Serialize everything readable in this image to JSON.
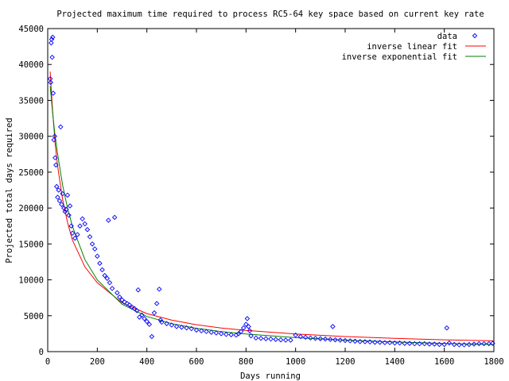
{
  "chart_data": {
    "type": "scatter",
    "title": "Projected maximum time required to process RC5-64 key space based on current key rate",
    "xlabel": "Days running",
    "ylabel": "Projected total days required",
    "xlim": [
      0,
      1800
    ],
    "ylim": [
      0,
      45000
    ],
    "x_ticks": [
      0,
      200,
      400,
      600,
      800,
      1000,
      1200,
      1400,
      1600,
      1800
    ],
    "y_ticks": [
      0,
      5000,
      10000,
      15000,
      20000,
      25000,
      30000,
      35000,
      40000,
      45000
    ],
    "grid": false,
    "legend_position": "top-right",
    "series": [
      {
        "name": "data",
        "kind": "points",
        "color": "#0000ff",
        "points": [
          [
            10,
            38000
          ],
          [
            12,
            37500
          ],
          [
            14,
            43000
          ],
          [
            16,
            43500
          ],
          [
            18,
            41000
          ],
          [
            20,
            43800
          ],
          [
            22,
            36000
          ],
          [
            25,
            29500
          ],
          [
            28,
            30000
          ],
          [
            30,
            27000
          ],
          [
            33,
            26000
          ],
          [
            36,
            23000
          ],
          [
            40,
            21500
          ],
          [
            44,
            22500
          ],
          [
            48,
            21000
          ],
          [
            52,
            31300
          ],
          [
            56,
            20500
          ],
          [
            60,
            22000
          ],
          [
            65,
            20000
          ],
          [
            70,
            19500
          ],
          [
            75,
            19800
          ],
          [
            80,
            21800
          ],
          [
            85,
            19000
          ],
          [
            90,
            20300
          ],
          [
            95,
            17500
          ],
          [
            100,
            16500
          ],
          [
            110,
            15800
          ],
          [
            120,
            16300
          ],
          [
            130,
            17500
          ],
          [
            140,
            18500
          ],
          [
            150,
            17800
          ],
          [
            160,
            17000
          ],
          [
            170,
            16000
          ],
          [
            180,
            15000
          ],
          [
            190,
            14300
          ],
          [
            200,
            13300
          ],
          [
            210,
            12300
          ],
          [
            220,
            11400
          ],
          [
            230,
            10600
          ],
          [
            240,
            10200
          ],
          [
            245,
            18300
          ],
          [
            250,
            9600
          ],
          [
            260,
            8800
          ],
          [
            270,
            18700
          ],
          [
            280,
            8200
          ],
          [
            290,
            7600
          ],
          [
            300,
            7200
          ],
          [
            310,
            6900
          ],
          [
            320,
            6700
          ],
          [
            330,
            6500
          ],
          [
            340,
            6200
          ],
          [
            350,
            6000
          ],
          [
            360,
            5700
          ],
          [
            365,
            8600
          ],
          [
            370,
            4800
          ],
          [
            380,
            5100
          ],
          [
            390,
            4600
          ],
          [
            400,
            4200
          ],
          [
            410,
            3800
          ],
          [
            420,
            2100
          ],
          [
            430,
            5400
          ],
          [
            440,
            6700
          ],
          [
            450,
            8700
          ],
          [
            455,
            4400
          ],
          [
            460,
            4100
          ],
          [
            480,
            3900
          ],
          [
            500,
            3700
          ],
          [
            520,
            3500
          ],
          [
            540,
            3400
          ],
          [
            560,
            3300
          ],
          [
            580,
            3200
          ],
          [
            600,
            3000
          ],
          [
            620,
            2900
          ],
          [
            640,
            2800
          ],
          [
            660,
            2700
          ],
          [
            680,
            2600
          ],
          [
            700,
            2500
          ],
          [
            720,
            2400
          ],
          [
            740,
            2350
          ],
          [
            760,
            2300
          ],
          [
            770,
            2500
          ],
          [
            780,
            2800
          ],
          [
            790,
            3300
          ],
          [
            800,
            3800
          ],
          [
            805,
            4600
          ],
          [
            810,
            3500
          ],
          [
            815,
            2900
          ],
          [
            820,
            2200
          ],
          [
            840,
            1900
          ],
          [
            860,
            1850
          ],
          [
            880,
            1800
          ],
          [
            900,
            1750
          ],
          [
            920,
            1700
          ],
          [
            940,
            1650
          ],
          [
            960,
            1600
          ],
          [
            980,
            1600
          ],
          [
            1000,
            2300
          ],
          [
            1020,
            2100
          ],
          [
            1040,
            2000
          ],
          [
            1060,
            1900
          ],
          [
            1080,
            1850
          ],
          [
            1100,
            1800
          ],
          [
            1120,
            1750
          ],
          [
            1140,
            1700
          ],
          [
            1150,
            3500
          ],
          [
            1160,
            1650
          ],
          [
            1180,
            1600
          ],
          [
            1200,
            1550
          ],
          [
            1220,
            1500
          ],
          [
            1240,
            1450
          ],
          [
            1260,
            1400
          ],
          [
            1280,
            1380
          ],
          [
            1300,
            1350
          ],
          [
            1320,
            1300
          ],
          [
            1340,
            1300
          ],
          [
            1360,
            1250
          ],
          [
            1380,
            1250
          ],
          [
            1400,
            1200
          ],
          [
            1420,
            1200
          ],
          [
            1440,
            1150
          ],
          [
            1460,
            1150
          ],
          [
            1480,
            1100
          ],
          [
            1500,
            1100
          ],
          [
            1520,
            1100
          ],
          [
            1540,
            1050
          ],
          [
            1560,
            1050
          ],
          [
            1580,
            1000
          ],
          [
            1600,
            1000
          ],
          [
            1610,
            3300
          ],
          [
            1620,
            1200
          ],
          [
            1640,
            1000
          ],
          [
            1660,
            950
          ],
          [
            1680,
            950
          ],
          [
            1700,
            1000
          ],
          [
            1720,
            1050
          ],
          [
            1740,
            1100
          ],
          [
            1760,
            1100
          ],
          [
            1780,
            1100
          ],
          [
            1795,
            1150
          ]
        ]
      },
      {
        "name": "inverse linear fit",
        "kind": "line",
        "color": "#ff0000",
        "x": [
          10,
          15,
          20,
          30,
          40,
          60,
          80,
          100,
          150,
          200,
          300,
          400,
          500,
          600,
          700,
          800,
          1000,
          1200,
          1400,
          1600,
          1800
        ],
        "y": [
          39000,
          36000,
          33500,
          29000,
          25800,
          21200,
          18000,
          15500,
          11800,
          9600,
          6800,
          5300,
          4400,
          3750,
          3300,
          2950,
          2450,
          2100,
          1850,
          1650,
          1500
        ]
      },
      {
        "name": "inverse exponential fit",
        "kind": "line",
        "color": "#008000",
        "x": [
          10,
          15,
          20,
          30,
          40,
          60,
          80,
          100,
          150,
          200,
          300,
          400,
          500,
          600,
          700,
          800,
          1000,
          1200,
          1400,
          1600,
          1800
        ],
        "y": [
          37000,
          35000,
          33200,
          30000,
          27500,
          23200,
          20000,
          17400,
          12800,
          10000,
          6600,
          4900,
          3900,
          3250,
          2800,
          2450,
          1950,
          1600,
          1350,
          1150,
          1000
        ]
      }
    ]
  }
}
